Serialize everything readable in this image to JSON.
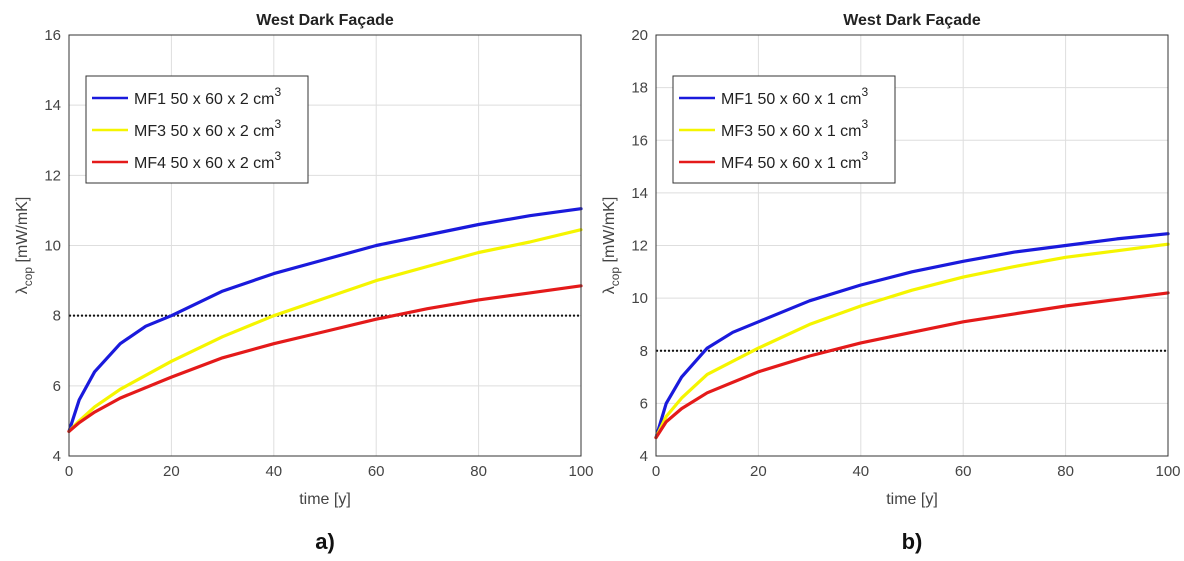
{
  "chart_data": [
    {
      "type": "line",
      "panel_label": "a)",
      "title": "West Dark Façade",
      "xlabel": "time [y]",
      "ylabel_main": "λ",
      "ylabel_sub": "cop",
      "ylabel_unit": " [mW/mK]",
      "xlim": [
        0,
        100
      ],
      "ylim": [
        4,
        16
      ],
      "xticks": [
        "0",
        "20",
        "40",
        "60",
        "80",
        "100"
      ],
      "yticks": [
        "4",
        "6",
        "8",
        "10",
        "12",
        "14",
        "16"
      ],
      "grid": true,
      "legend_position": "top-left",
      "reference_line": {
        "y": 8,
        "color": "#111111",
        "style": "dotted"
      },
      "series": [
        {
          "name": "MF1 50 x 60 x 2 cm",
          "superscript": "3",
          "color": "#1a1adc",
          "x": [
            0,
            2,
            5,
            10,
            15,
            20,
            30,
            40,
            50,
            60,
            70,
            80,
            90,
            100
          ],
          "y": [
            4.7,
            5.6,
            6.4,
            7.2,
            7.7,
            8.0,
            8.7,
            9.2,
            9.6,
            10.0,
            10.3,
            10.6,
            10.85,
            11.05
          ]
        },
        {
          "name": "MF3 50 x 60 x 2 cm",
          "superscript": "3",
          "color": "#f5f500",
          "x": [
            0,
            2,
            5,
            10,
            20,
            30,
            40,
            50,
            60,
            70,
            80,
            90,
            100
          ],
          "y": [
            4.7,
            5.0,
            5.4,
            5.9,
            6.7,
            7.4,
            8.0,
            8.5,
            9.0,
            9.4,
            9.8,
            10.1,
            10.45
          ]
        },
        {
          "name": "MF4 50 x 60 x 2 cm",
          "superscript": "3",
          "color": "#e41a1a",
          "x": [
            0,
            2,
            5,
            10,
            20,
            30,
            40,
            50,
            60,
            70,
            80,
            90,
            100
          ],
          "y": [
            4.7,
            4.95,
            5.25,
            5.65,
            6.25,
            6.8,
            7.2,
            7.55,
            7.9,
            8.2,
            8.45,
            8.65,
            8.85
          ]
        }
      ]
    },
    {
      "type": "line",
      "panel_label": "b)",
      "title": "West Dark Façade",
      "xlabel": "time [y]",
      "ylabel_main": "λ",
      "ylabel_sub": "cop",
      "ylabel_unit": " [mW/mK]",
      "xlim": [
        0,
        100
      ],
      "ylim": [
        4,
        20
      ],
      "xticks": [
        "0",
        "20",
        "40",
        "60",
        "80",
        "100"
      ],
      "yticks": [
        "4",
        "6",
        "8",
        "10",
        "12",
        "14",
        "16",
        "18",
        "20"
      ],
      "grid": true,
      "legend_position": "top-left",
      "reference_line": {
        "y": 8,
        "color": "#111111",
        "style": "dotted"
      },
      "series": [
        {
          "name": "MF1 50 x 60 x 1 cm",
          "superscript": "3",
          "color": "#1a1adc",
          "x": [
            0,
            2,
            5,
            10,
            15,
            20,
            30,
            40,
            50,
            60,
            70,
            80,
            90,
            100
          ],
          "y": [
            4.7,
            6.0,
            7.0,
            8.1,
            8.7,
            9.1,
            9.9,
            10.5,
            11.0,
            11.4,
            11.75,
            12.0,
            12.25,
            12.45
          ]
        },
        {
          "name": "MF3 50 x 60 x 1 cm",
          "superscript": "3",
          "color": "#f5f500",
          "x": [
            0,
            2,
            5,
            10,
            20,
            30,
            40,
            50,
            60,
            70,
            80,
            90,
            100
          ],
          "y": [
            4.7,
            5.5,
            6.2,
            7.1,
            8.1,
            9.0,
            9.7,
            10.3,
            10.8,
            11.2,
            11.55,
            11.8,
            12.05
          ]
        },
        {
          "name": "MF4 50 x 60 x 1 cm",
          "superscript": "3",
          "color": "#e41a1a",
          "x": [
            0,
            2,
            5,
            10,
            20,
            30,
            40,
            50,
            60,
            70,
            80,
            90,
            100
          ],
          "y": [
            4.7,
            5.3,
            5.8,
            6.4,
            7.2,
            7.8,
            8.3,
            8.7,
            9.1,
            9.4,
            9.7,
            9.95,
            10.2
          ]
        }
      ]
    }
  ]
}
